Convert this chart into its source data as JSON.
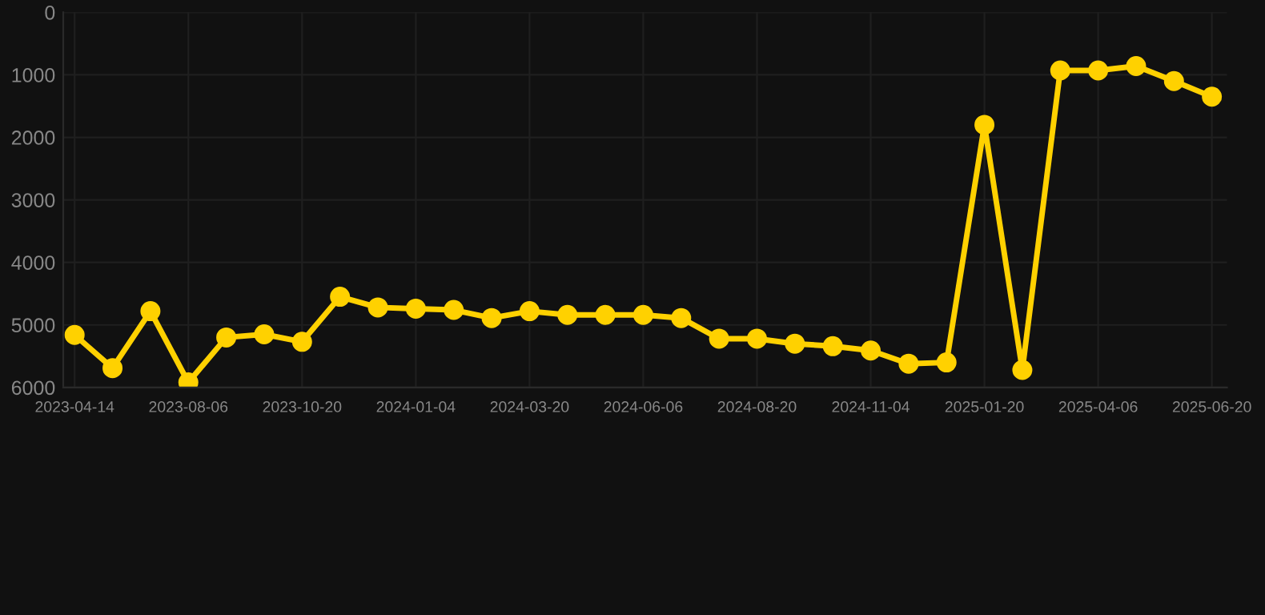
{
  "chart_data": {
    "type": "line",
    "categories": [
      "2023-04-14",
      null,
      null,
      "2023-08-06",
      null,
      null,
      "2023-10-20",
      null,
      null,
      "2024-01-04",
      null,
      null,
      "2024-03-20",
      null,
      null,
      "2024-06-06",
      null,
      null,
      "2024-08-20",
      null,
      null,
      "2024-11-04",
      null,
      null,
      "2025-01-20",
      null,
      null,
      "2025-04-06",
      null,
      null,
      "2025-06-20"
    ],
    "series": [
      {
        "color": "#ffd100",
        "values": [
          5160,
          5690,
          4780,
          5920,
          5200,
          5150,
          5270,
          4550,
          4720,
          4740,
          4760,
          4890,
          4780,
          4840,
          4840,
          4840,
          4890,
          5220,
          5220,
          5300,
          5340,
          5410,
          5620,
          5600,
          1800,
          5720,
          930,
          930,
          860,
          1100,
          1350
        ]
      }
    ],
    "ylim": [
      6000,
      0
    ],
    "yticks": [
      0,
      1000,
      2000,
      3000,
      4000,
      5000,
      6000
    ],
    "grid": true,
    "marker": "circle",
    "line_style": "solid"
  }
}
